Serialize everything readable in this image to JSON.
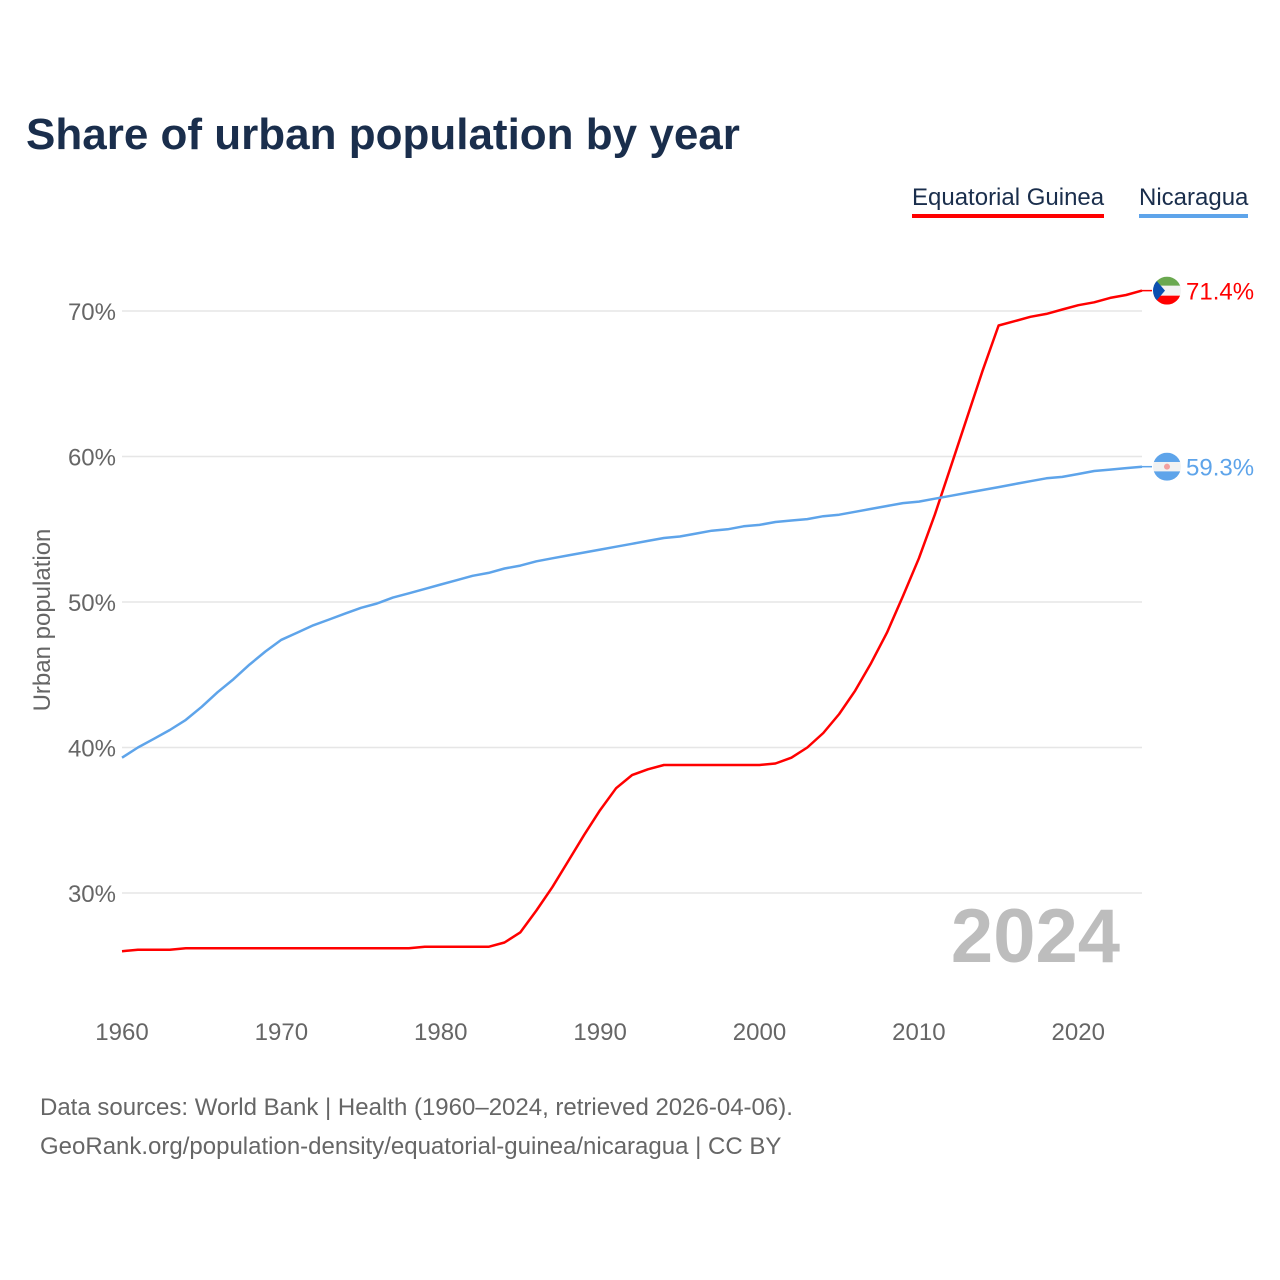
{
  "chart_data": {
    "type": "line",
    "title": "Share of urban population by year",
    "ylabel": "Urban population",
    "xlabel": "",
    "ylim": [
      23,
      74
    ],
    "xlim": [
      1960,
      2024
    ],
    "yticks": [
      "30%",
      "40%",
      "50%",
      "60%",
      "70%"
    ],
    "ytick_values": [
      30,
      40,
      50,
      60,
      70
    ],
    "xticks": [
      "1960",
      "1970",
      "1980",
      "1990",
      "2000",
      "2010",
      "2020"
    ],
    "xtick_values": [
      1960,
      1970,
      1980,
      1990,
      2000,
      2010,
      2020
    ],
    "grid": true,
    "legend_position": "top-right",
    "year_watermark": "2024",
    "x": [
      1960,
      1961,
      1962,
      1963,
      1964,
      1965,
      1966,
      1967,
      1968,
      1969,
      1970,
      1971,
      1972,
      1973,
      1974,
      1975,
      1976,
      1977,
      1978,
      1979,
      1980,
      1981,
      1982,
      1983,
      1984,
      1985,
      1986,
      1987,
      1988,
      1989,
      1990,
      1991,
      1992,
      1993,
      1994,
      1995,
      1996,
      1997,
      1998,
      1999,
      2000,
      2001,
      2002,
      2003,
      2004,
      2005,
      2006,
      2007,
      2008,
      2009,
      2010,
      2011,
      2012,
      2013,
      2014,
      2015,
      2016,
      2017,
      2018,
      2019,
      2020,
      2021,
      2022,
      2023,
      2024
    ],
    "series": [
      {
        "name": "Equatorial Guinea",
        "color": "#ff0000",
        "end_label": "71.4%",
        "values": [
          26.0,
          26.1,
          26.1,
          26.1,
          26.2,
          26.2,
          26.2,
          26.2,
          26.2,
          26.2,
          26.2,
          26.2,
          26.2,
          26.2,
          26.2,
          26.2,
          26.2,
          26.2,
          26.2,
          26.3,
          26.3,
          26.3,
          26.3,
          26.3,
          26.6,
          27.3,
          28.8,
          30.4,
          32.2,
          34.0,
          35.7,
          37.2,
          38.1,
          38.5,
          38.8,
          38.8,
          38.8,
          38.8,
          38.8,
          38.8,
          38.8,
          38.9,
          39.3,
          40.0,
          41.0,
          42.3,
          43.9,
          45.8,
          47.9,
          50.4,
          53.0,
          56.0,
          59.3,
          62.6,
          65.9,
          69.0,
          69.3,
          69.6,
          69.8,
          70.1,
          70.4,
          70.6,
          70.9,
          71.1,
          71.4
        ]
      },
      {
        "name": "Nicaragua",
        "color": "#5ea4ea",
        "end_label": "59.3%",
        "values": [
          39.3,
          40.0,
          40.6,
          41.2,
          41.9,
          42.8,
          43.8,
          44.7,
          45.7,
          46.6,
          47.4,
          47.9,
          48.4,
          48.8,
          49.2,
          49.6,
          49.9,
          50.3,
          50.6,
          50.9,
          51.2,
          51.5,
          51.8,
          52.0,
          52.3,
          52.5,
          52.8,
          53.0,
          53.2,
          53.4,
          53.6,
          53.8,
          54.0,
          54.2,
          54.4,
          54.5,
          54.7,
          54.9,
          55.0,
          55.2,
          55.3,
          55.5,
          55.6,
          55.7,
          55.9,
          56.0,
          56.2,
          56.4,
          56.6,
          56.8,
          56.9,
          57.1,
          57.3,
          57.5,
          57.7,
          57.9,
          58.1,
          58.3,
          58.5,
          58.6,
          58.8,
          59.0,
          59.1,
          59.2,
          59.3
        ]
      }
    ]
  },
  "footer": {
    "line1": "Data sources: World Bank | Health (1960–2024, retrieved 2026-04-06).",
    "line2": "GeoRank.org/population-density/equatorial-guinea/nicaragua | CC BY"
  }
}
